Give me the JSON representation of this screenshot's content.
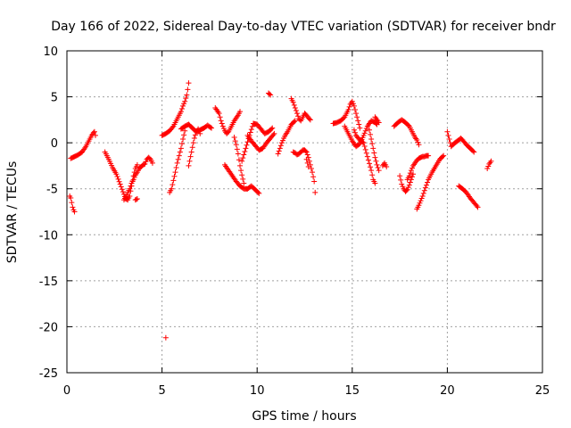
{
  "chart_data": {
    "type": "scatter",
    "title": "Day 166 of 2022, Sidereal Day-to-day VTEC variation (SDTVAR) for receiver bndr",
    "xlabel": "GPS time / hours",
    "ylabel": "SDTVAR / TECUs",
    "xlim": [
      0,
      25
    ],
    "ylim": [
      -25,
      10
    ],
    "xticks": [
      0,
      5,
      10,
      15,
      20,
      25
    ],
    "xtick_labels": [
      "0",
      "5",
      "10",
      "15",
      "20",
      "25"
    ],
    "yticks": [
      10,
      5,
      0,
      -5,
      -10,
      -15,
      -20,
      -25
    ],
    "ytick_labels": [
      "10",
      "5",
      "0",
      "-5",
      "-10",
      "-15",
      "-20",
      "-25"
    ],
    "grid": true,
    "marker": "+",
    "color": "#ff0000",
    "series": [
      {
        "name": "bndr",
        "arcs": [
          {
            "x": [
              0.15,
              0.2,
              0.25,
              0.3,
              0.35,
              0.4
            ],
            "y": [
              -5.8,
              -6.0,
              -6.5,
              -7.0,
              -7.3,
              -7.5
            ]
          },
          {
            "x": [
              0.2,
              0.4,
              0.6,
              0.8,
              1.0,
              1.1,
              1.2,
              1.3,
              1.4,
              1.45,
              1.5
            ],
            "y": [
              -1.7,
              -1.5,
              -1.3,
              -1.0,
              -0.4,
              0.0,
              0.4,
              0.8,
              1.1,
              1.2,
              0.8
            ]
          },
          {
            "x": [
              2.0,
              2.2,
              2.4,
              2.6,
              2.8,
              3.0,
              3.1,
              3.2,
              3.3,
              3.4,
              3.5,
              3.6,
              3.7
            ],
            "y": [
              -1.0,
              -1.8,
              -2.7,
              -3.4,
              -4.5,
              -5.6,
              -6.1,
              -6.2,
              -5.8,
              -4.7,
              -3.6,
              -2.8,
              -2.4
            ]
          },
          {
            "x": [
              3.0,
              3.1,
              3.2,
              3.3,
              3.4,
              3.5,
              3.6,
              3.7,
              3.8,
              3.9,
              4.0,
              4.1,
              4.2,
              4.3,
              4.4,
              4.5
            ],
            "y": [
              -6.2,
              -5.9,
              -5.4,
              -5.0,
              -4.4,
              -4.0,
              -3.5,
              -3.2,
              -2.8,
              -2.6,
              -2.4,
              -2.3,
              -1.8,
              -1.6,
              -1.8,
              -2.2
            ]
          },
          {
            "x": [
              3.6,
              3.7
            ],
            "y": [
              -6.2,
              -6.1
            ]
          },
          {
            "x": [
              5.0,
              5.2,
              5.4,
              5.6,
              5.8,
              6.0,
              6.1,
              6.2,
              6.3,
              6.35,
              6.4
            ],
            "y": [
              0.8,
              1.0,
              1.3,
              1.8,
              2.6,
              3.4,
              4.0,
              4.5,
              5.2,
              5.8,
              6.5
            ]
          },
          {
            "x": [
              5.2
            ],
            "y": [
              -21.2
            ]
          },
          {
            "x": [
              5.4,
              5.5,
              5.6,
              5.7,
              5.8,
              5.9,
              6.0,
              6.1,
              6.2
            ],
            "y": [
              -5.4,
              -5.0,
              -4.1,
              -3.2,
              -2.2,
              -1.4,
              -0.6,
              0.4,
              1.3
            ]
          },
          {
            "x": [
              6.0,
              6.2,
              6.4,
              6.6,
              6.8,
              7.0,
              7.2,
              7.4,
              7.6
            ],
            "y": [
              1.5,
              1.8,
              2.0,
              1.6,
              1.2,
              1.4,
              1.6,
              1.9,
              1.6
            ]
          },
          {
            "x": [
              6.4,
              6.5,
              6.6,
              6.7,
              6.8,
              6.9,
              7.0
            ],
            "y": [
              -2.5,
              -1.5,
              -0.5,
              0.5,
              1.2,
              1.5,
              1.0
            ]
          },
          {
            "x": [
              7.8,
              7.9,
              8.0,
              8.1,
              8.2,
              8.3,
              8.4,
              8.5,
              8.6,
              8.7,
              8.8,
              8.9,
              9.0,
              9.1
            ],
            "y": [
              3.8,
              3.5,
              3.2,
              2.4,
              1.8,
              1.3,
              1.0,
              1.2,
              1.6,
              2.0,
              2.4,
              2.7,
              3.0,
              3.4
            ]
          },
          {
            "x": [
              8.3,
              8.5,
              8.7,
              8.9,
              9.1,
              9.3,
              9.5,
              9.7,
              9.9,
              10.1
            ],
            "y": [
              -2.4,
              -3.0,
              -3.6,
              -4.2,
              -4.7,
              -5.0,
              -5.0,
              -4.7,
              -5.1,
              -5.5
            ]
          },
          {
            "x": [
              8.8,
              8.9,
              9.0,
              9.1,
              9.2,
              9.3
            ],
            "y": [
              0.6,
              -0.2,
              -1.2,
              -2.5,
              -3.5,
              -4.4
            ]
          },
          {
            "x": [
              9.2,
              9.4,
              9.6,
              9.8,
              10.0,
              10.2,
              10.4,
              10.6,
              10.8
            ],
            "y": [
              -2.0,
              -0.6,
              0.8,
              2.1,
              2.0,
              1.5,
              1.0,
              1.2,
              1.6
            ]
          },
          {
            "x": [
              9.5,
              9.7,
              9.9,
              10.1,
              10.3,
              10.5,
              10.7,
              10.9
            ],
            "y": [
              0.8,
              0.2,
              -0.3,
              -0.8,
              -0.6,
              0.0,
              0.5,
              1.0
            ]
          },
          {
            "x": [
              10.6,
              10.7
            ],
            "y": [
              5.4,
              5.2
            ]
          },
          {
            "x": [
              11.1,
              11.2,
              11.3,
              11.4,
              11.5,
              11.6,
              11.7,
              11.8,
              11.9,
              12.0
            ],
            "y": [
              -1.2,
              -0.6,
              0.0,
              0.5,
              0.9,
              1.2,
              1.6,
              2.0,
              2.2,
              2.4
            ]
          },
          {
            "x": [
              11.8,
              11.9,
              12.0,
              12.1,
              12.2,
              12.3,
              12.4,
              12.5,
              12.6,
              12.7,
              12.8
            ],
            "y": [
              4.8,
              4.4,
              3.8,
              3.2,
              2.6,
              2.4,
              2.8,
              3.2,
              3.0,
              2.7,
              2.5
            ]
          },
          {
            "x": [
              11.9,
              12.0,
              12.1,
              12.2,
              12.3,
              12.4,
              12.5,
              12.6,
              12.7,
              12.8,
              12.9,
              13.0,
              13.05
            ],
            "y": [
              -1.0,
              -1.1,
              -1.3,
              -1.2,
              -1.0,
              -0.8,
              -0.8,
              -1.0,
              -1.6,
              -2.4,
              -3.2,
              -4.2,
              -5.4
            ]
          },
          {
            "x": [
              12.6,
              12.7
            ],
            "y": [
              -1.8,
              -2.6
            ]
          },
          {
            "x": [
              14.0,
              14.2,
              14.4,
              14.6,
              14.8,
              14.9,
              15.0,
              15.1,
              15.2,
              15.3,
              15.4
            ],
            "y": [
              2.1,
              2.2,
              2.4,
              2.8,
              3.6,
              4.2,
              4.5,
              4.0,
              3.2,
              2.4,
              1.6
            ]
          },
          {
            "x": [
              14.6,
              14.8,
              15.0,
              15.2,
              15.4,
              15.6,
              15.8,
              16.0,
              16.2,
              16.3
            ],
            "y": [
              1.8,
              1.0,
              0.2,
              -0.4,
              -0.1,
              0.8,
              1.8,
              2.4,
              2.2,
              2.0
            ]
          },
          {
            "x": [
              15.1,
              15.2,
              15.4,
              15.6,
              15.8,
              16.0,
              16.1,
              16.2
            ],
            "y": [
              1.4,
              0.8,
              0.3,
              0.0,
              -1.5,
              -3.0,
              -4.0,
              -4.4
            ]
          },
          {
            "x": [
              15.9,
              16.0,
              16.1,
              16.2,
              16.3,
              16.4
            ],
            "y": [
              1.4,
              0.4,
              -0.6,
              -1.6,
              -2.4,
              -3.0
            ]
          },
          {
            "x": [
              16.2,
              16.3,
              16.4
            ],
            "y": [
              2.8,
              2.5,
              2.2
            ]
          },
          {
            "x": [
              16.6,
              16.7,
              16.8
            ],
            "y": [
              -2.5,
              -2.2,
              -2.6
            ]
          },
          {
            "x": [
              17.2,
              17.4,
              17.6,
              17.8,
              18.0,
              18.1,
              18.2,
              18.3,
              18.4,
              18.5
            ],
            "y": [
              1.8,
              2.2,
              2.5,
              2.2,
              1.8,
              1.4,
              1.0,
              0.6,
              0.3,
              -0.2
            ]
          },
          {
            "x": [
              17.5,
              17.6,
              17.7,
              17.8,
              17.9,
              18.0,
              18.1,
              18.2
            ],
            "y": [
              -3.6,
              -4.5,
              -5.0,
              -5.3,
              -5.1,
              -4.6,
              -4.0,
              -3.4
            ]
          },
          {
            "x": [
              17.9,
              18.0,
              18.1,
              18.2,
              18.3,
              18.4,
              18.5,
              18.6,
              18.7,
              18.8,
              18.9,
              19.0
            ],
            "y": [
              -4.0,
              -3.6,
              -3.0,
              -2.5,
              -2.2,
              -1.9,
              -1.7,
              -1.6,
              -1.5,
              -1.5,
              -1.4,
              -1.4
            ]
          },
          {
            "x": [
              18.4,
              18.5,
              18.6,
              18.7,
              18.8,
              18.9,
              19.0,
              19.2,
              19.4,
              19.6,
              19.8
            ],
            "y": [
              -7.2,
              -6.8,
              -6.3,
              -5.8,
              -5.2,
              -4.6,
              -4.0,
              -3.2,
              -2.5,
              -1.8,
              -1.4
            ]
          },
          {
            "x": [
              20.0,
              20.2,
              20.4,
              20.6,
              20.7,
              20.8,
              21.0,
              21.2,
              21.4
            ],
            "y": [
              1.2,
              -0.4,
              0.0,
              0.3,
              0.5,
              0.3,
              -0.2,
              -0.6,
              -1.0
            ]
          },
          {
            "x": [
              20.6,
              20.8,
              21.0,
              21.2,
              21.4,
              21.6
            ],
            "y": [
              -4.7,
              -5.0,
              -5.4,
              -6.0,
              -6.5,
              -7.0
            ]
          },
          {
            "x": [
              22.1,
              22.2,
              22.3
            ],
            "y": [
              -2.8,
              -2.3,
              -2.0
            ]
          }
        ]
      }
    ]
  }
}
